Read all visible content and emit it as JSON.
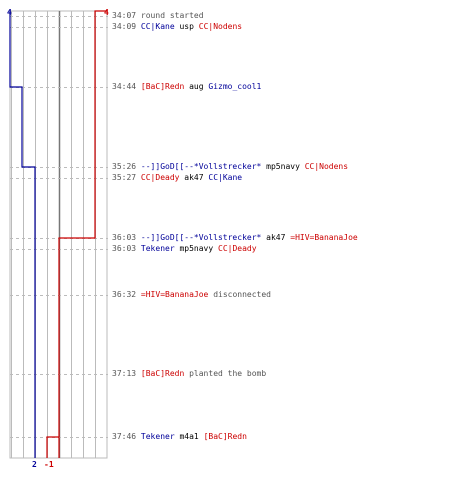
{
  "colors": {
    "ct": "#000099",
    "t": "#cc0000",
    "text": "#555555",
    "grid": "#bbbbbb",
    "dash": "#bbbbbb",
    "zero": "#777777"
  },
  "chart_data": {
    "type": "line",
    "series": [
      {
        "team": "ct",
        "points": [
          [
            0,
            4
          ],
          [
            1,
            3
          ],
          [
            3,
            2
          ]
        ]
      },
      {
        "team": "t",
        "points": [
          [
            0,
            4
          ],
          [
            3,
            1
          ],
          [
            3,
            0
          ],
          [
            6,
            -1
          ]
        ]
      }
    ],
    "y_range": [
      -1,
      4
    ],
    "start_labels": {
      "ct": "4",
      "t": "4"
    },
    "end_labels": {
      "ct": "2",
      "t": "-1"
    }
  },
  "events": [
    {
      "time": "34:07",
      "parts": [
        {
          "c": "text",
          "t": "round started"
        }
      ]
    },
    {
      "time": "34:09",
      "parts": [
        {
          "c": "ct",
          "t": "CC|Kane"
        },
        {
          "c": "wpn",
          "t": "usp"
        },
        {
          "c": "t",
          "t": "CC|Nodens"
        }
      ]
    },
    {
      "time": "34:44",
      "parts": [
        {
          "c": "t",
          "t": "[BaC]Redn"
        },
        {
          "c": "wpn",
          "t": "aug"
        },
        {
          "c": "ct",
          "t": "Gizmo_cool1"
        }
      ]
    },
    {
      "time": "35:26",
      "parts": [
        {
          "c": "ct",
          "t": "--]]GoD[[--*Vollstrecker*"
        },
        {
          "c": "wpn",
          "t": "mp5navy"
        },
        {
          "c": "t",
          "t": "CC|Nodens"
        }
      ]
    },
    {
      "time": "35:27",
      "parts": [
        {
          "c": "t",
          "t": "CC|Deady"
        },
        {
          "c": "wpn",
          "t": "ak47"
        },
        {
          "c": "ct",
          "t": "CC|Kane"
        }
      ]
    },
    {
      "time": "36:03",
      "parts": [
        {
          "c": "ct",
          "t": "--]]GoD[[--*Vollstrecker*"
        },
        {
          "c": "wpn",
          "t": "ak47"
        },
        {
          "c": "t",
          "t": "=HIV=BananaJoe"
        }
      ]
    },
    {
      "time": "36:03",
      "parts": [
        {
          "c": "ct",
          "t": "Tekener"
        },
        {
          "c": "wpn",
          "t": "mp5navy"
        },
        {
          "c": "t",
          "t": "CC|Deady"
        }
      ]
    },
    {
      "time": "36:32",
      "parts": [
        {
          "c": "t",
          "t": "=HIV=BananaJoe"
        },
        {
          "c": "text",
          "t": "disconnected"
        }
      ]
    },
    {
      "time": "37:13",
      "parts": [
        {
          "c": "t",
          "t": "[BaC]Redn"
        },
        {
          "c": "text",
          "t": "planted the bomb"
        }
      ]
    },
    {
      "time": "37:46",
      "parts": [
        {
          "c": "ct",
          "t": "Tekener"
        },
        {
          "c": "wpn",
          "t": "m4a1"
        },
        {
          "c": "t",
          "t": "[BaC]Redn"
        }
      ]
    }
  ]
}
